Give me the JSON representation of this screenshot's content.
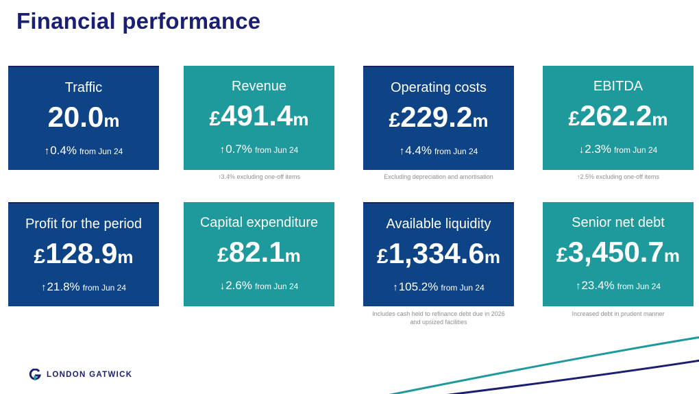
{
  "page": {
    "title": "Financial performance",
    "brand": "LONDON GATWICK"
  },
  "colors": {
    "blue": "#0e4385",
    "teal": "#1e9a9c",
    "navy": "#1a1f71"
  },
  "cards": [
    {
      "label": "Traffic",
      "currency": "",
      "value": "20.0",
      "unit": "m",
      "arrow": "↑",
      "change": "0.4%",
      "from": "from Jun 24",
      "note": "",
      "color": "blue"
    },
    {
      "label": "Revenue",
      "currency": "£",
      "value": "491.4",
      "unit": "m",
      "arrow": "↑",
      "change": "0.7%",
      "from": "from Jun 24",
      "note": "↑3.4% excluding one-off items",
      "color": "teal"
    },
    {
      "label": "Operating costs",
      "currency": "£",
      "value": "229.2",
      "unit": "m",
      "arrow": "↑",
      "change": "4.4%",
      "from": "from Jun 24",
      "note": "Excluding depreciation and amortisation",
      "color": "blue"
    },
    {
      "label": "EBITDA",
      "currency": "£",
      "value": "262.2",
      "unit": "m",
      "arrow": "↓",
      "change": "2.3%",
      "from": "from Jun 24",
      "note": "↑2.5% excluding one-off items",
      "color": "teal"
    },
    {
      "label": "Profit for the period",
      "currency": "£",
      "value": "128.9",
      "unit": "m",
      "arrow": "↑",
      "change": "21.8%",
      "from": "from Jun 24",
      "note": "",
      "color": "blue"
    },
    {
      "label": "Capital expenditure",
      "currency": "£",
      "value": "82.1",
      "unit": "m",
      "arrow": "↓",
      "change": "2.6%",
      "from": "from Jun 24",
      "note": "",
      "color": "teal"
    },
    {
      "label": "Available liquidity",
      "currency": "£",
      "value": "1,334.6",
      "unit": "m",
      "arrow": "↑",
      "change": "105.2%",
      "from": "from Jun 24",
      "note": "Includes cash held to refinance debt due in 2026",
      "note2": "and upsized facilities",
      "color": "blue"
    },
    {
      "label": "Senior net debt",
      "currency": "£",
      "value": "3,450.7",
      "unit": "m",
      "arrow": "↑",
      "change": "23.4%",
      "from": "from Jun 24",
      "note": "Increased debt in prudent manner",
      "color": "teal"
    }
  ]
}
